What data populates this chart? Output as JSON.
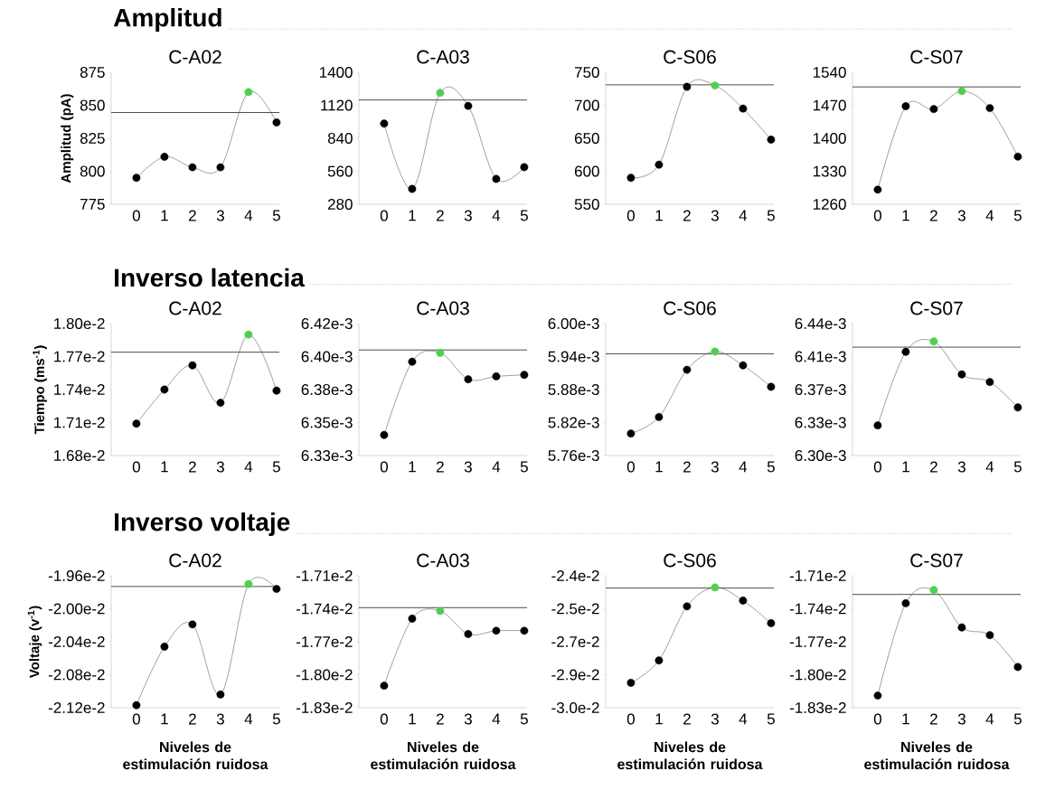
{
  "chart_data": [
    {
      "type": "line",
      "title": "Amplitud",
      "subtitle": "C-A02",
      "ylabel": "Amplitud (pA)",
      "categories": [
        "0",
        "1",
        "2",
        "3",
        "4",
        "5"
      ],
      "marker": "circle",
      "ylim": [
        775,
        875
      ],
      "yticks": [
        775,
        800,
        825,
        850,
        875
      ],
      "ref_lines": [
        {
          "axis": "y",
          "value": 844.5,
          "color": "#000000"
        }
      ],
      "series": [
        {
          "color": "#000000",
          "colors": [
            "#000000",
            "#000000",
            "#000000",
            "#000000",
            "#4dd14d",
            "#000000"
          ],
          "values": [
            795,
            811,
            803,
            803,
            860,
            837
          ]
        }
      ]
    },
    {
      "type": "line",
      "subtitle": "C-A03",
      "categories": [
        "0",
        "1",
        "2",
        "3",
        "4",
        "5"
      ],
      "marker": "circle",
      "ylim": [
        280,
        1400
      ],
      "yticks": [
        280,
        560,
        840,
        1120,
        1400
      ],
      "ref_lines": [
        {
          "axis": "y",
          "value": 1165,
          "color": "#000000"
        }
      ],
      "series": [
        {
          "color": "#000000",
          "colors": [
            "#000000",
            "#000000",
            "#4dd14d",
            "#000000",
            "#000000",
            "#000000"
          ],
          "values": [
            965,
            410,
            1225,
            1115,
            495,
            595
          ]
        }
      ]
    },
    {
      "type": "line",
      "subtitle": "C-S06",
      "categories": [
        "0",
        "1",
        "2",
        "3",
        "4",
        "5"
      ],
      "marker": "circle",
      "ylim": [
        550,
        750
      ],
      "yticks": [
        550,
        600,
        650,
        700,
        750
      ],
      "ref_lines": [
        {
          "axis": "y",
          "value": 731,
          "color": "#000000"
        }
      ],
      "series": [
        {
          "color": "#000000",
          "colors": [
            "#000000",
            "#000000",
            "#000000",
            "#4dd14d",
            "#000000",
            "#000000"
          ],
          "values": [
            590,
            610,
            728,
            730,
            695,
            648
          ]
        }
      ]
    },
    {
      "type": "line",
      "subtitle": "C-S07",
      "categories": [
        "0",
        "1",
        "2",
        "3",
        "4",
        "5"
      ],
      "marker": "circle",
      "ylim": [
        1260,
        1540
      ],
      "yticks": [
        1260,
        1330,
        1400,
        1470,
        1540
      ],
      "ref_lines": [
        {
          "axis": "y",
          "value": 1509,
          "color": "#000000"
        }
      ],
      "series": [
        {
          "color": "#000000",
          "colors": [
            "#000000",
            "#000000",
            "#000000",
            "#4dd14d",
            "#000000",
            "#000000"
          ],
          "values": [
            1291,
            1468,
            1462,
            1500,
            1464,
            1361
          ]
        }
      ]
    },
    {
      "type": "line",
      "title": "Inverso latencia",
      "subtitle": "C-A02",
      "ylabel": "Tiempo (ms$^{-1}$)",
      "categories": [
        "0",
        "1",
        "2",
        "3",
        "4",
        "5"
      ],
      "marker": "circle",
      "ylim": [
        0.0168,
        0.018
      ],
      "yticks": [
        {
          "value": 0.0168,
          "label": "1.68e-2"
        },
        {
          "value": 0.0171,
          "label": "1.71e-2"
        },
        {
          "value": 0.0174,
          "label": "1.74e-2"
        },
        {
          "value": 0.0177,
          "label": "1.77e-2"
        },
        {
          "value": 0.018,
          "label": "1.80e-2"
        }
      ],
      "ref_lines": [
        {
          "axis": "y",
          "value": 0.01774,
          "color": "#000000"
        }
      ],
      "series": [
        {
          "color": "#000000",
          "colors": [
            "#000000",
            "#000000",
            "#000000",
            "#000000",
            "#4dd14d",
            "#000000"
          ],
          "values": [
            0.01709,
            0.0174,
            0.01762,
            0.01728,
            0.0179,
            0.01739
          ]
        }
      ]
    },
    {
      "type": "line",
      "subtitle": "C-A03",
      "categories": [
        "0",
        "1",
        "2",
        "3",
        "4",
        "5"
      ],
      "marker": "circle",
      "ylim": [
        0.00633,
        0.00642
      ],
      "yticks": [
        {
          "value": 0.00633,
          "label": "6.33e-3"
        },
        {
          "value": 0.0063525,
          "label": "6.35e-3"
        },
        {
          "value": 0.006375,
          "label": "6.38e-3"
        },
        {
          "value": 0.0063975,
          "label": "6.40e-3"
        },
        {
          "value": 0.00642,
          "label": "6.42e-3"
        }
      ],
      "ref_lines": [
        {
          "axis": "y",
          "value": 0.006402,
          "color": "#000000"
        }
      ],
      "series": [
        {
          "color": "#000000",
          "colors": [
            "#000000",
            "#000000",
            "#4dd14d",
            "#000000",
            "#000000",
            "#000000"
          ],
          "values": [
            0.006344,
            0.006394,
            0.0064,
            0.006382,
            0.006384,
            0.006385
          ]
        }
      ]
    },
    {
      "type": "line",
      "subtitle": "C-S06",
      "categories": [
        "0",
        "1",
        "2",
        "3",
        "4",
        "5"
      ],
      "marker": "circle",
      "ylim": [
        0.00576,
        0.006
      ],
      "yticks": [
        {
          "value": 0.00576,
          "label": "5.76e-3"
        },
        {
          "value": 0.00582,
          "label": "5.82e-3"
        },
        {
          "value": 0.00588,
          "label": "5.88e-3"
        },
        {
          "value": 0.00594,
          "label": "5.94e-3"
        },
        {
          "value": 0.006,
          "label": "6.00e-3"
        }
      ],
      "ref_lines": [
        {
          "axis": "y",
          "value": 0.005945,
          "color": "#000000"
        }
      ],
      "series": [
        {
          "color": "#000000",
          "colors": [
            "#000000",
            "#000000",
            "#000000",
            "#4dd14d",
            "#000000",
            "#000000"
          ],
          "values": [
            0.0058,
            0.00583,
            0.005916,
            0.005949,
            0.005924,
            0.005885
          ]
        }
      ]
    },
    {
      "type": "line",
      "subtitle": "C-S07",
      "categories": [
        "0",
        "1",
        "2",
        "3",
        "4",
        "5"
      ],
      "marker": "circle",
      "ylim": [
        0.0063,
        0.00644
      ],
      "yticks": [
        {
          "value": 0.0063,
          "label": "6.30e-3"
        },
        {
          "value": 0.006335,
          "label": "6.33e-3"
        },
        {
          "value": 0.00637,
          "label": "6.37e-3"
        },
        {
          "value": 0.006405,
          "label": "6.41e-3"
        },
        {
          "value": 0.00644,
          "label": "6.44e-3"
        }
      ],
      "ref_lines": [
        {
          "axis": "y",
          "value": 0.006415,
          "color": "#000000"
        }
      ],
      "series": [
        {
          "color": "#000000",
          "colors": [
            "#000000",
            "#000000",
            "#4dd14d",
            "#000000",
            "#000000",
            "#000000"
          ],
          "values": [
            0.006332,
            0.00641,
            0.006421,
            0.006386,
            0.006378,
            0.006351
          ]
        }
      ]
    },
    {
      "type": "line",
      "title": "Inverso voltaje",
      "subtitle": "C-A02",
      "ylabel": "Voltaje (v$^{-1}$)",
      "xlabel": "Niveles de estimulación ruidosa",
      "categories": [
        "0",
        "1",
        "2",
        "3",
        "4",
        "5"
      ],
      "marker": "circle",
      "ylim": [
        -0.0212,
        -0.0196
      ],
      "yticks": [
        {
          "value": -0.0212,
          "label": "-2.12e-2"
        },
        {
          "value": -0.0208,
          "label": "-2.08e-2"
        },
        {
          "value": -0.0204,
          "label": "-2.04e-2"
        },
        {
          "value": -0.02,
          "label": "-2.00e-2"
        },
        {
          "value": -0.0196,
          "label": "-1.96e-2"
        }
      ],
      "ref_lines": [
        {
          "axis": "y",
          "value": -0.01973,
          "color": "#000000"
        }
      ],
      "series": [
        {
          "color": "#000000",
          "colors": [
            "#000000",
            "#000000",
            "#000000",
            "#000000",
            "#4dd14d",
            "#000000"
          ],
          "values": [
            -0.02117,
            -0.02046,
            -0.02019,
            -0.02104,
            -0.0197,
            -0.01976
          ]
        }
      ]
    },
    {
      "type": "line",
      "subtitle": "C-A03",
      "xlabel": "Niveles de estimulación ruidosa",
      "categories": [
        "0",
        "1",
        "2",
        "3",
        "4",
        "5"
      ],
      "marker": "circle",
      "ylim": [
        -0.0183,
        -0.0171
      ],
      "yticks": [
        {
          "value": -0.0183,
          "label": "-1.83e-2"
        },
        {
          "value": -0.018,
          "label": "-1.80e-2"
        },
        {
          "value": -0.0177,
          "label": "-1.77e-2"
        },
        {
          "value": -0.0174,
          "label": "-1.74e-2"
        },
        {
          "value": -0.0171,
          "label": "-1.71e-2"
        }
      ],
      "ref_lines": [
        {
          "axis": "y",
          "value": -0.01739,
          "color": "#000000"
        }
      ],
      "series": [
        {
          "color": "#000000",
          "colors": [
            "#000000",
            "#000000",
            "#4dd14d",
            "#000000",
            "#000000",
            "#000000"
          ],
          "values": [
            -0.0181,
            -0.01749,
            -0.01742,
            -0.01763,
            -0.0176,
            -0.0176
          ]
        }
      ]
    },
    {
      "type": "line",
      "subtitle": "C-S06",
      "xlabel": "Niveles de estimulación ruidosa",
      "categories": [
        "0",
        "1",
        "2",
        "3",
        "4",
        "5"
      ],
      "marker": "circle",
      "ylim": [
        -0.03,
        -0.024
      ],
      "yticks": [
        {
          "value": -0.03,
          "label": "-3.0e-2"
        },
        {
          "value": -0.0285,
          "label": "-2.9e-2"
        },
        {
          "value": -0.027,
          "label": "-2.7e-2"
        },
        {
          "value": -0.0255,
          "label": "-2.5e-2"
        },
        {
          "value": -0.024,
          "label": "-2.4e-2"
        }
      ],
      "ref_lines": [
        {
          "axis": "y",
          "value": -0.02456,
          "color": "#000000"
        }
      ],
      "series": [
        {
          "color": "#000000",
          "colors": [
            "#000000",
            "#000000",
            "#000000",
            "#4dd14d",
            "#000000",
            "#000000"
          ],
          "values": [
            -0.02887,
            -0.02785,
            -0.02539,
            -0.02453,
            -0.02513,
            -0.02616
          ]
        }
      ]
    },
    {
      "type": "line",
      "subtitle": "C-S07",
      "xlabel": "Niveles de estimulación ruidosa",
      "categories": [
        "0",
        "1",
        "2",
        "3",
        "4",
        "5"
      ],
      "marker": "circle",
      "ylim": [
        -0.0183,
        -0.0171
      ],
      "yticks": [
        {
          "value": -0.0183,
          "label": "-1.83e-2"
        },
        {
          "value": -0.018,
          "label": "-1.80e-2"
        },
        {
          "value": -0.0177,
          "label": "-1.77e-2"
        },
        {
          "value": -0.0174,
          "label": "-1.74e-2"
        },
        {
          "value": -0.0171,
          "label": "-1.71e-2"
        }
      ],
      "ref_lines": [
        {
          "axis": "y",
          "value": -0.01727,
          "color": "#000000"
        }
      ],
      "series": [
        {
          "color": "#000000",
          "colors": [
            "#000000",
            "#000000",
            "#4dd14d",
            "#000000",
            "#000000",
            "#000000"
          ],
          "values": [
            -0.01819,
            -0.01735,
            -0.01723,
            -0.01757,
            -0.01764,
            -0.01793
          ]
        }
      ]
    }
  ]
}
